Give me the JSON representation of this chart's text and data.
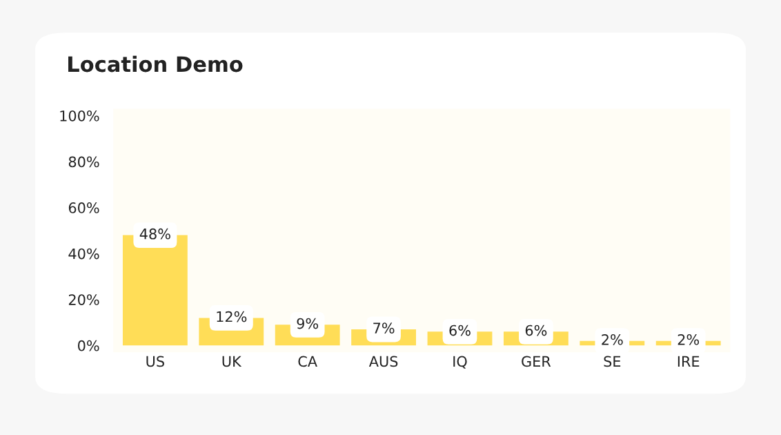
{
  "chart_data": {
    "type": "bar",
    "title": "Location Demo",
    "categories": [
      "US",
      "UK",
      "CA",
      "AUS",
      "IQ",
      "GER",
      "SE",
      "IRE"
    ],
    "values": [
      48,
      12,
      9,
      7,
      6,
      6,
      2,
      2
    ],
    "value_labels": [
      "48%",
      "12%",
      "9%",
      "7%",
      "6%",
      "6%",
      "2%",
      "2%"
    ],
    "color": "#ffdd57",
    "ylim": [
      -3,
      103
    ],
    "yticks": [
      {
        "value": 0,
        "label": "0%"
      },
      {
        "value": 20,
        "label": "20%"
      },
      {
        "value": 40,
        "label": "40%"
      },
      {
        "value": 60,
        "label": "60%"
      },
      {
        "value": 80,
        "label": "80%"
      },
      {
        "value": 100,
        "label": "100%"
      }
    ],
    "grid": false,
    "legend": false
  }
}
